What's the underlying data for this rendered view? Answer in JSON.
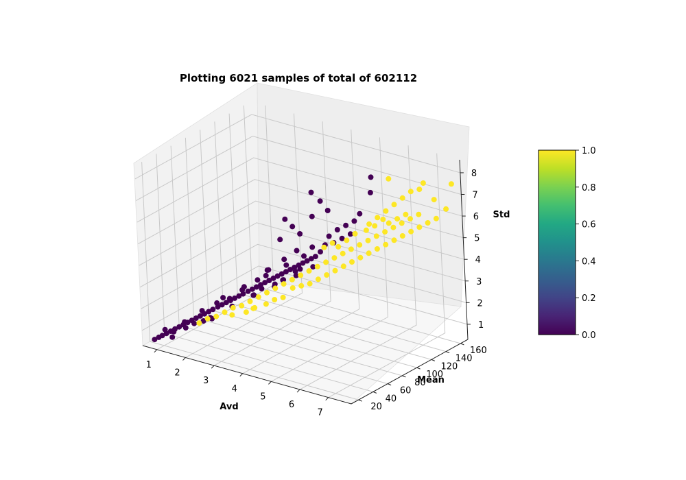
{
  "chart_data": {
    "type": "scatter",
    "title": "Plotting 6021 samples of total of 602112",
    "xlabel": "Avd",
    "ylabel": "Mean",
    "zlabel": "Std",
    "xticks": [
      1,
      2,
      3,
      4,
      5,
      6,
      7
    ],
    "yticks": [
      20,
      40,
      60,
      80,
      100,
      120,
      140,
      160
    ],
    "zticks": [
      1,
      2,
      3,
      4,
      5,
      6,
      7,
      8
    ],
    "xlim": [
      0.5,
      7.8
    ],
    "ylim": [
      10,
      170
    ],
    "zlim": [
      0.3,
      8.6
    ],
    "grid": true,
    "projection": "3d",
    "colormap": "viridis",
    "colorbar": {
      "ticks": [
        "0.0",
        "0.2",
        "0.4",
        "0.6",
        "0.8",
        "1.0"
      ],
      "min": 0.0,
      "max": 1.0
    },
    "series": [
      {
        "class_value": 0,
        "color": "#440154",
        "points": [
          [
            0.8,
            15,
            0.6
          ],
          [
            0.9,
            17,
            0.7
          ],
          [
            1.0,
            18,
            0.8
          ],
          [
            1.1,
            20,
            0.9
          ],
          [
            1.2,
            22,
            1.0
          ],
          [
            1.3,
            24,
            1.1
          ],
          [
            1.4,
            26,
            1.2
          ],
          [
            1.5,
            28,
            1.3
          ],
          [
            1.6,
            30,
            1.4
          ],
          [
            1.7,
            32,
            1.5
          ],
          [
            1.8,
            34,
            1.6
          ],
          [
            1.9,
            36,
            1.7
          ],
          [
            2.0,
            38,
            1.8
          ],
          [
            2.1,
            40,
            1.9
          ],
          [
            2.2,
            42,
            2.0
          ],
          [
            2.3,
            45,
            2.1
          ],
          [
            2.4,
            47,
            2.2
          ],
          [
            2.5,
            49,
            2.3
          ],
          [
            2.6,
            51,
            2.4
          ],
          [
            2.7,
            53,
            2.5
          ],
          [
            2.8,
            55,
            2.6
          ],
          [
            2.9,
            57,
            2.7
          ],
          [
            3.0,
            60,
            2.8
          ],
          [
            3.1,
            62,
            2.9
          ],
          [
            3.2,
            64,
            3.0
          ],
          [
            3.3,
            66,
            3.1
          ],
          [
            3.4,
            68,
            3.2
          ],
          [
            3.5,
            70,
            3.3
          ],
          [
            3.6,
            72,
            3.4
          ],
          [
            3.7,
            74,
            3.5
          ],
          [
            3.8,
            76,
            3.6
          ],
          [
            3.9,
            78,
            3.7
          ],
          [
            4.0,
            80,
            3.8
          ],
          [
            4.1,
            82,
            3.9
          ],
          [
            4.2,
            84,
            4.0
          ],
          [
            4.3,
            86,
            4.1
          ],
          [
            4.4,
            88,
            4.2
          ],
          [
            4.5,
            90,
            4.3
          ],
          [
            4.6,
            92,
            4.4
          ],
          [
            4.7,
            95,
            4.6
          ],
          [
            1.0,
            22,
            1.0
          ],
          [
            1.3,
            20,
            0.8
          ],
          [
            1.6,
            26,
            1.5
          ],
          [
            2.0,
            35,
            2.0
          ],
          [
            2.2,
            38,
            1.7
          ],
          [
            2.5,
            45,
            2.6
          ],
          [
            2.7,
            49,
            2.2
          ],
          [
            3.0,
            55,
            3.1
          ],
          [
            3.2,
            60,
            2.7
          ],
          [
            3.5,
            66,
            3.6
          ],
          [
            3.7,
            70,
            3.2
          ],
          [
            4.0,
            75,
            4.1
          ],
          [
            4.2,
            80,
            3.6
          ],
          [
            4.4,
            84,
            4.5
          ],
          [
            4.6,
            88,
            4.0
          ],
          [
            3.4,
            72,
            3.7
          ],
          [
            3.8,
            80,
            4.2
          ],
          [
            3.9,
            74,
            3.4
          ],
          [
            4.1,
            86,
            4.6
          ],
          [
            4.3,
            82,
            3.9
          ],
          [
            4.5,
            92,
            4.8
          ],
          [
            4.8,
            98,
            4.9
          ],
          [
            5.0,
            102,
            5.0
          ],
          [
            5.2,
            106,
            5.2
          ],
          [
            5.4,
            110,
            5.4
          ],
          [
            3.6,
            66,
            3.9
          ],
          [
            3.3,
            62,
            3.4
          ],
          [
            2.9,
            56,
            2.9
          ],
          [
            2.6,
            50,
            2.5
          ],
          [
            2.3,
            44,
            2.3
          ],
          [
            4.9,
            100,
            5.3
          ],
          [
            5.1,
            104,
            5.6
          ],
          [
            5.3,
            108,
            5.8
          ],
          [
            5.5,
            112,
            6.0
          ],
          [
            5.6,
            116,
            6.3
          ],
          [
            5.0,
            96,
            6.6
          ],
          [
            4.8,
            94,
            7.0
          ],
          [
            4.6,
            90,
            7.4
          ],
          [
            6.0,
            118,
            8.1
          ],
          [
            5.8,
            124,
            7.2
          ],
          [
            4.4,
            80,
            5.6
          ],
          [
            4.2,
            78,
            5.9
          ],
          [
            4.0,
            76,
            6.2
          ],
          [
            3.9,
            72,
            5.3
          ],
          [
            4.7,
            86,
            6.4
          ],
          [
            2.1,
            44,
            1.5
          ],
          [
            1.9,
            40,
            1.4
          ],
          [
            1.7,
            35,
            1.3
          ],
          [
            1.5,
            31,
            1.1
          ],
          [
            1.2,
            26,
            0.9
          ],
          [
            3.1,
            63,
            2.6
          ],
          [
            3.3,
            67,
            2.9
          ],
          [
            3.6,
            73,
            3.0
          ],
          [
            3.8,
            77,
            3.3
          ],
          [
            4.1,
            83,
            3.7
          ]
        ]
      },
      {
        "class_value": 1,
        "color": "#fde725",
        "points": [
          [
            1.8,
            38,
            1.3
          ],
          [
            2.0,
            42,
            1.5
          ],
          [
            2.2,
            46,
            1.6
          ],
          [
            2.4,
            50,
            1.8
          ],
          [
            2.6,
            54,
            2.0
          ],
          [
            2.8,
            58,
            2.1
          ],
          [
            3.0,
            62,
            2.3
          ],
          [
            3.2,
            66,
            2.5
          ],
          [
            3.4,
            70,
            2.7
          ],
          [
            3.6,
            74,
            2.9
          ],
          [
            3.8,
            78,
            3.1
          ],
          [
            4.0,
            82,
            3.3
          ],
          [
            4.2,
            86,
            3.5
          ],
          [
            4.4,
            90,
            3.7
          ],
          [
            4.6,
            94,
            3.9
          ],
          [
            4.8,
            98,
            4.1
          ],
          [
            5.0,
            102,
            4.3
          ],
          [
            5.2,
            106,
            4.5
          ],
          [
            5.4,
            110,
            4.7
          ],
          [
            5.6,
            114,
            4.9
          ],
          [
            5.8,
            118,
            5.1
          ],
          [
            6.0,
            122,
            5.3
          ],
          [
            6.2,
            126,
            5.5
          ],
          [
            6.4,
            130,
            5.7
          ],
          [
            6.6,
            134,
            5.9
          ],
          [
            6.8,
            138,
            6.1
          ],
          [
            7.0,
            142,
            6.3
          ],
          [
            5.1,
            110,
            3.8
          ],
          [
            5.3,
            114,
            4.0
          ],
          [
            5.5,
            118,
            4.2
          ],
          [
            5.7,
            122,
            4.4
          ],
          [
            5.9,
            126,
            4.6
          ],
          [
            6.1,
            130,
            4.8
          ],
          [
            6.3,
            134,
            5.0
          ],
          [
            6.5,
            138,
            5.2
          ],
          [
            6.7,
            142,
            5.4
          ],
          [
            6.9,
            146,
            5.6
          ],
          [
            7.1,
            150,
            5.8
          ],
          [
            7.3,
            154,
            6.0
          ],
          [
            4.9,
            106,
            3.6
          ],
          [
            4.7,
            102,
            3.4
          ],
          [
            4.5,
            98,
            3.2
          ],
          [
            4.3,
            94,
            3.0
          ],
          [
            4.1,
            90,
            2.9
          ],
          [
            3.9,
            86,
            2.8
          ],
          [
            5.6,
            128,
            5.6
          ],
          [
            5.8,
            132,
            5.9
          ],
          [
            6.0,
            136,
            6.2
          ],
          [
            6.2,
            140,
            6.5
          ],
          [
            6.4,
            144,
            6.8
          ],
          [
            6.6,
            148,
            7.1
          ],
          [
            6.8,
            152,
            7.2
          ],
          [
            7.0,
            150,
            7.6
          ],
          [
            6.2,
            134,
            7.8
          ],
          [
            7.6,
            165,
            7.5
          ],
          [
            7.5,
            160,
            6.4
          ],
          [
            7.2,
            156,
            6.8
          ],
          [
            5.4,
            116,
            5.3
          ],
          [
            5.2,
            112,
            5.0
          ],
          [
            5.0,
            108,
            4.7
          ],
          [
            3.0,
            66,
            1.9
          ],
          [
            3.3,
            72,
            2.1
          ],
          [
            3.5,
            76,
            2.3
          ],
          [
            3.7,
            80,
            2.4
          ],
          [
            2.5,
            56,
            1.6
          ],
          [
            2.9,
            60,
            1.8
          ],
          [
            3.1,
            64,
            2.0
          ],
          [
            6.3,
            128,
            5.9
          ],
          [
            6.5,
            132,
            6.1
          ],
          [
            6.7,
            136,
            6.3
          ],
          [
            4.6,
            104,
            4.6
          ],
          [
            4.8,
            108,
            4.8
          ],
          [
            5.7,
            120,
            5.5
          ],
          [
            5.9,
            124,
            5.7
          ],
          [
            6.1,
            128,
            6.0
          ]
        ]
      }
    ]
  }
}
